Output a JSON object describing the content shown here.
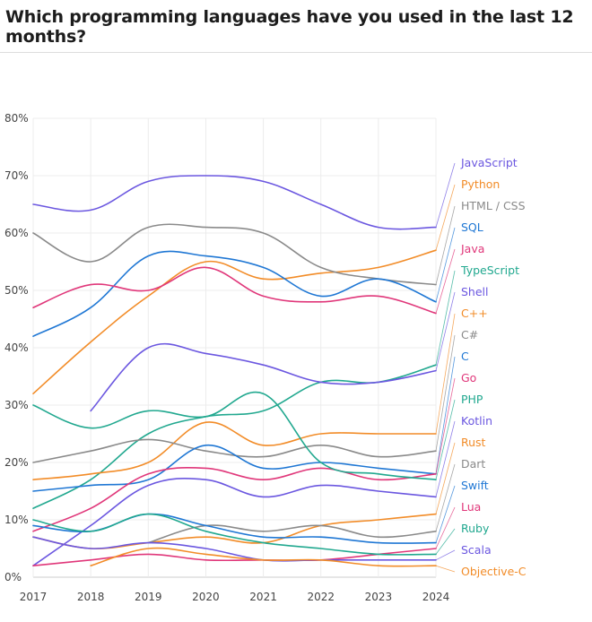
{
  "chart_data": {
    "type": "line",
    "title": "Which programming languages have you used in the last 12 months?",
    "x": [
      2017,
      2018,
      2019,
      2020,
      2021,
      2022,
      2023,
      2024
    ],
    "x_tick_labels": [
      "2017",
      "2018",
      "2019",
      "2020",
      "2021",
      "2022",
      "2023",
      "2024"
    ],
    "y_tick_labels": [
      "0%",
      "10%",
      "20%",
      "30%",
      "40%",
      "50%",
      "60%",
      "70%",
      "80%"
    ],
    "ylim": [
      0,
      80
    ],
    "y_unit": "%",
    "grid": true,
    "legend_position": "right",
    "series": [
      {
        "name": "JavaScript",
        "color": "#6b57e0",
        "values": [
          65,
          64,
          69,
          70,
          69,
          65,
          61,
          61
        ]
      },
      {
        "name": "Python",
        "color": "#f28c28",
        "values": [
          32,
          41,
          49,
          55,
          52,
          53,
          54,
          57
        ]
      },
      {
        "name": "HTML / CSS",
        "color": "#8a8a8a",
        "values": [
          60,
          55,
          61,
          61,
          60,
          54,
          52,
          51
        ]
      },
      {
        "name": "SQL",
        "color": "#1f77d4",
        "values": [
          42,
          47,
          56,
          56,
          54,
          49,
          52,
          48
        ]
      },
      {
        "name": "Java",
        "color": "#e0377a",
        "values": [
          47,
          51,
          50,
          54,
          49,
          48,
          49,
          46
        ]
      },
      {
        "name": "TypeScript",
        "color": "#21a88f",
        "values": [
          12,
          17,
          25,
          28,
          29,
          34,
          34,
          37
        ]
      },
      {
        "name": "Shell",
        "color": "#6b57e0",
        "values": [
          null,
          29,
          40,
          39,
          37,
          34,
          34,
          36
        ]
      },
      {
        "name": "C++",
        "color": "#f28c28",
        "values": [
          17,
          18,
          20,
          27,
          23,
          25,
          25,
          25
        ]
      },
      {
        "name": "C#",
        "color": "#8a8a8a",
        "values": [
          20,
          22,
          24,
          22,
          21,
          23,
          21,
          22
        ]
      },
      {
        "name": "C",
        "color": "#1f77d4",
        "values": [
          15,
          16,
          17,
          23,
          19,
          20,
          19,
          18
        ]
      },
      {
        "name": "Go",
        "color": "#e0377a",
        "values": [
          8,
          12,
          18,
          19,
          17,
          19,
          17,
          18
        ]
      },
      {
        "name": "PHP",
        "color": "#21a88f",
        "values": [
          30,
          26,
          29,
          28,
          32,
          20,
          18,
          17
        ]
      },
      {
        "name": "Kotlin",
        "color": "#6b57e0",
        "values": [
          2,
          9,
          16,
          17,
          14,
          16,
          15,
          14
        ]
      },
      {
        "name": "Rust",
        "color": "#f28c28",
        "values": [
          7,
          5,
          6,
          7,
          6,
          9,
          10,
          11
        ]
      },
      {
        "name": "Dart",
        "color": "#8a8a8a",
        "values": [
          null,
          null,
          6,
          9,
          8,
          9,
          7,
          8
        ]
      },
      {
        "name": "Swift",
        "color": "#1f77d4",
        "values": [
          9,
          8,
          11,
          9,
          7,
          7,
          6,
          6
        ]
      },
      {
        "name": "Lua",
        "color": "#e0377a",
        "values": [
          2,
          3,
          4,
          3,
          3,
          3,
          4,
          5
        ]
      },
      {
        "name": "Ruby",
        "color": "#21a88f",
        "values": [
          10,
          8,
          11,
          8,
          6,
          5,
          4,
          4
        ]
      },
      {
        "name": "Scala",
        "color": "#6b57e0",
        "values": [
          7,
          5,
          6,
          5,
          3,
          3,
          3,
          3
        ]
      },
      {
        "name": "Objective-C",
        "color": "#f28c28",
        "values": [
          null,
          2,
          5,
          4,
          3,
          3,
          2,
          2
        ]
      }
    ]
  }
}
